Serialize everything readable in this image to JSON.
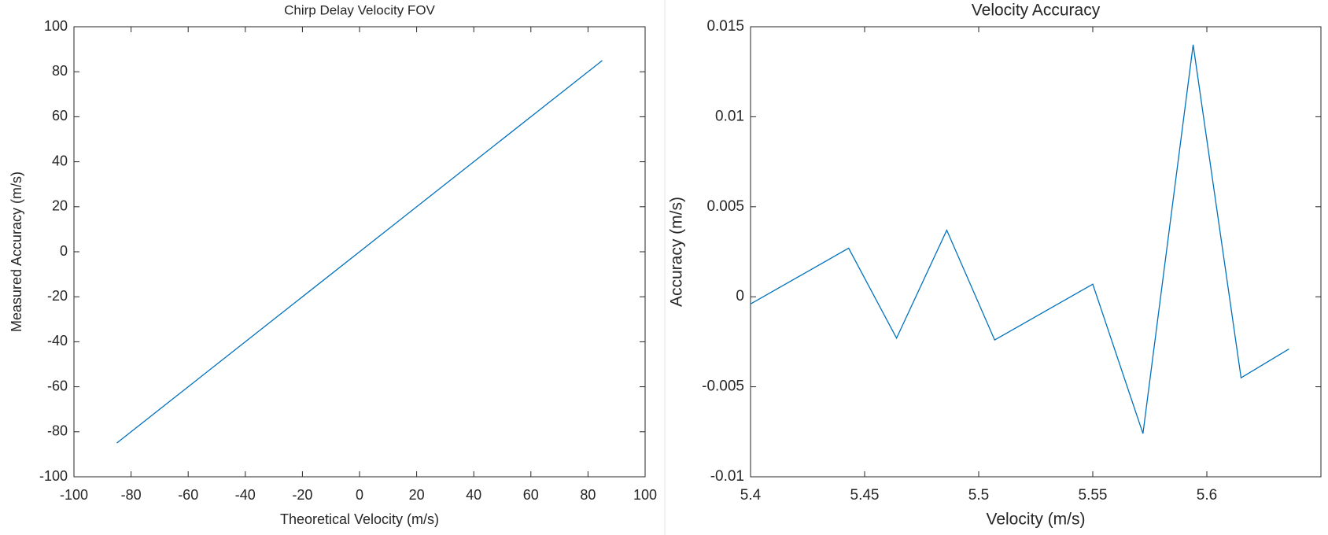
{
  "chart_data": [
    {
      "type": "line",
      "title": "Chirp Delay Velocity FOV",
      "xlabel": "Theoretical Velocity (m/s)",
      "ylabel": "Measured Accuracy (m/s)",
      "x": [
        -85,
        85
      ],
      "values": [
        -85,
        85
      ],
      "color": "#0072bd",
      "xlim": [
        -100,
        100
      ],
      "xticks": [
        -100,
        -80,
        -60,
        -40,
        -20,
        0,
        20,
        40,
        60,
        80,
        100
      ],
      "ylim": [
        -100,
        100
      ],
      "yticks": [
        -100,
        -80,
        -60,
        -40,
        -20,
        0,
        20,
        40,
        60,
        80,
        100
      ]
    },
    {
      "type": "line",
      "title": "Velocity Accuracy",
      "xlabel": "Velocity (m/s)",
      "ylabel": "Accuracy (m/s)",
      "x": [
        5.4,
        5.443,
        5.464,
        5.486,
        5.507,
        5.55,
        5.572,
        5.594,
        5.615,
        5.636
      ],
      "values": [
        -0.0004,
        0.0027,
        -0.0023,
        0.0037,
        -0.0024,
        0.0007,
        -0.0076,
        0.014,
        -0.0045,
        -0.0029
      ],
      "color": "#0072bd",
      "xlim": [
        5.4,
        5.65
      ],
      "xticks": [
        5.4,
        5.45,
        5.5,
        5.55,
        5.6
      ],
      "ylim": [
        -0.01,
        0.015
      ],
      "yticks": [
        -0.01,
        -0.005,
        0,
        0.005,
        0.01,
        0.015
      ]
    }
  ]
}
